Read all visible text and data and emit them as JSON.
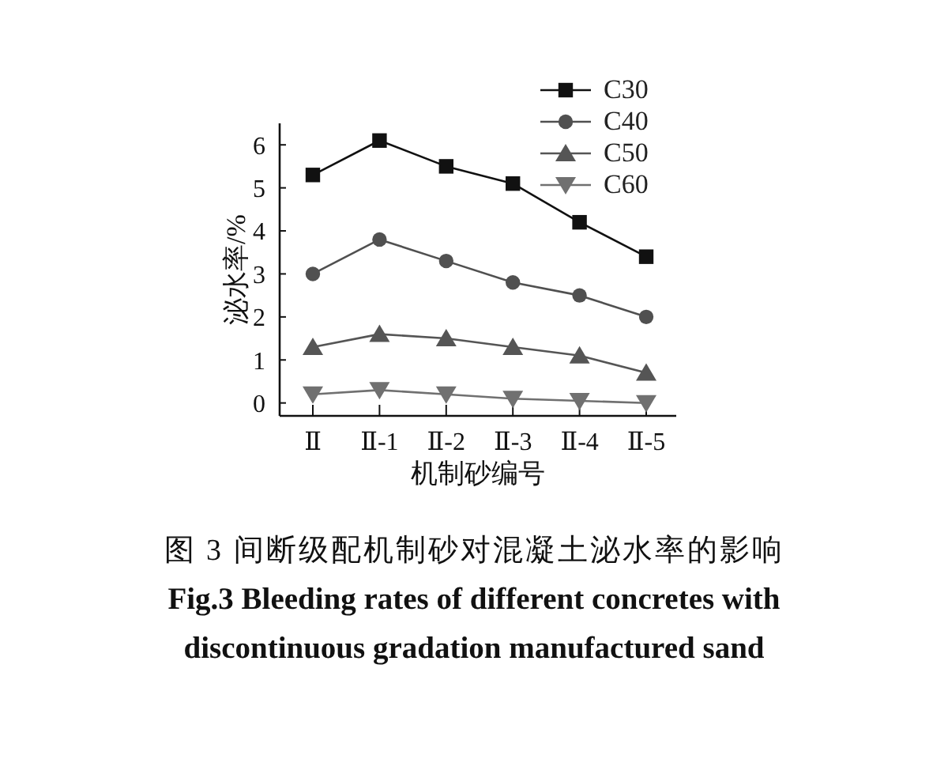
{
  "chart_data": {
    "type": "line",
    "categories": [
      "Ⅱ",
      "Ⅱ-1",
      "Ⅱ-2",
      "Ⅱ-3",
      "Ⅱ-4",
      "Ⅱ-5"
    ],
    "series": [
      {
        "name": "C30",
        "color": "#111111",
        "marker": "square",
        "values": [
          5.3,
          6.1,
          5.5,
          5.1,
          4.2,
          3.4
        ]
      },
      {
        "name": "C40",
        "color": "#505050",
        "marker": "circle",
        "values": [
          3.0,
          3.8,
          3.3,
          2.8,
          2.5,
          2.0
        ]
      },
      {
        "name": "C50",
        "color": "#555555",
        "marker": "triangle",
        "values": [
          1.3,
          1.6,
          1.5,
          1.3,
          1.1,
          0.7
        ]
      },
      {
        "name": "C60",
        "color": "#707070",
        "marker": "triangle-down",
        "values": [
          0.2,
          0.3,
          0.2,
          0.1,
          0.05,
          0.0
        ]
      }
    ],
    "xlabel": "机制砂编号",
    "ylabel": "泌水率/%",
    "ylim": [
      -0.3,
      6.5
    ],
    "yticks": [
      0,
      1,
      2,
      3,
      4,
      5,
      6
    ],
    "legend": "top right",
    "line_style": "solid",
    "annotations": [
      "图 3 间断级配机制砂对混凝土泌水率的影响",
      "Fig.3 Bleeding rates of different concretes with discontinuous gradation manufactured sand"
    ]
  }
}
